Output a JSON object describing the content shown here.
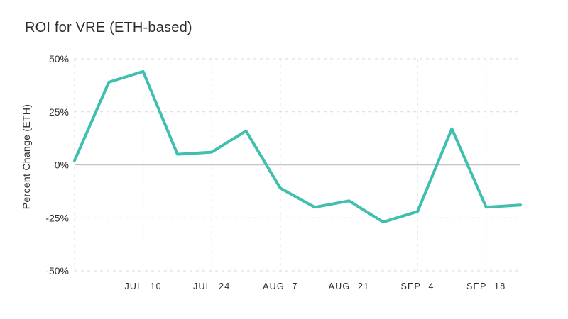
{
  "chart_data": {
    "type": "line",
    "title": "ROI for VRE (ETH-based)",
    "xlabel": "",
    "ylabel": "Percent Change (ETH)",
    "ylim": [
      -50,
      50
    ],
    "grid": "dashed",
    "legend": "none",
    "num_points": 14,
    "values": [
      2,
      39,
      44,
      5,
      6,
      16,
      -11,
      -20,
      -17,
      -27,
      -22,
      17,
      -20,
      -19
    ],
    "yticks": [
      {
        "label": "50%",
        "value": 50
      },
      {
        "label": "25%",
        "value": 25
      },
      {
        "label": "0%",
        "value": 0
      },
      {
        "label": "-25%",
        "value": -25
      },
      {
        "label": "-50%",
        "value": -50
      }
    ],
    "xticks": [
      {
        "label": "JUL 10",
        "index": 2
      },
      {
        "label": "JUL 24",
        "index": 4
      },
      {
        "label": "AUG 7",
        "index": 6
      },
      {
        "label": "AUG 21",
        "index": 8
      },
      {
        "label": "SEP 4",
        "index": 10
      },
      {
        "label": "SEP 18",
        "index": 12
      }
    ],
    "left_boundary_gridline": true,
    "colors": {
      "line": "#3fbfad",
      "grid": "#d9d9d9",
      "zero_line": "#c4c4c4",
      "text": "#2e2e2e",
      "title": "#2b2b2b",
      "background": "#ffffff"
    }
  }
}
